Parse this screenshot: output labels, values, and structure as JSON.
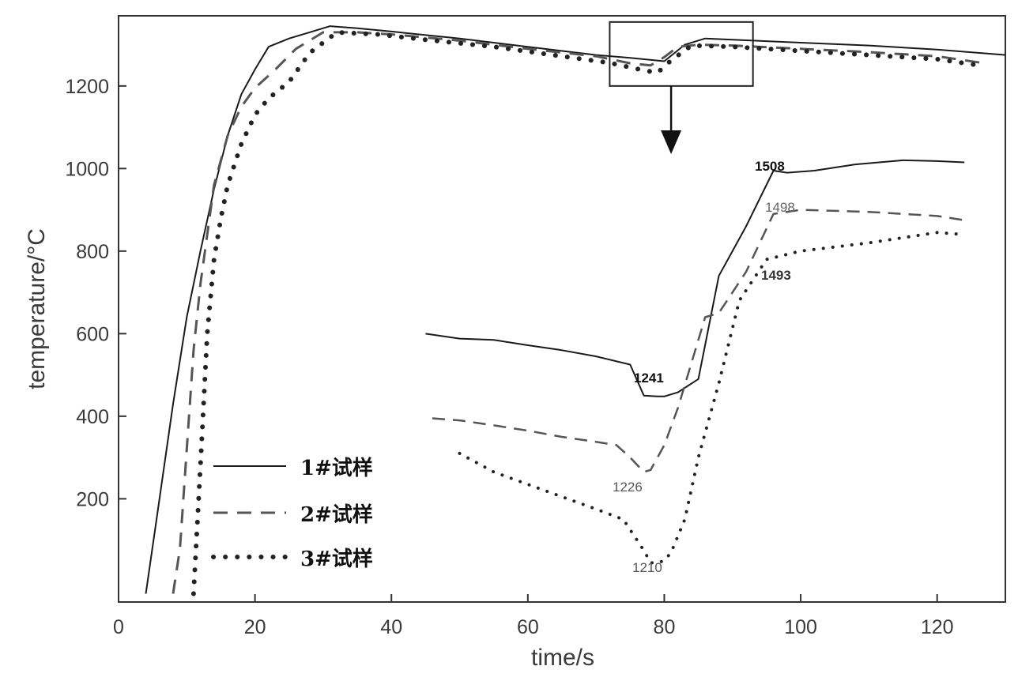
{
  "chart_data": {
    "type": "line",
    "xlabel": "time/s",
    "ylabel": "temperature/°C",
    "xlim": [
      0,
      130
    ],
    "ylim": [
      -50,
      1370
    ],
    "xticks": [
      0,
      20,
      40,
      60,
      80,
      100,
      120
    ],
    "yticks": [
      200,
      400,
      600,
      800,
      1000,
      1200
    ],
    "grid": false,
    "legend_position": "bottom-left",
    "series": [
      {
        "name": "1#试样",
        "style": "solid",
        "x": [
          4,
          6,
          8,
          10,
          12,
          14,
          16,
          18,
          20,
          22,
          25,
          28,
          31,
          35,
          40,
          50,
          60,
          70,
          75,
          80,
          83,
          86,
          90,
          100,
          110,
          120,
          130
        ],
        "y": [
          -30,
          200,
          430,
          640,
          800,
          950,
          1080,
          1180,
          1240,
          1295,
          1315,
          1330,
          1345,
          1340,
          1332,
          1315,
          1295,
          1275,
          1268,
          1260,
          1300,
          1315,
          1312,
          1305,
          1298,
          1288,
          1275
        ]
      },
      {
        "name": "2#试样",
        "style": "dashed",
        "x": [
          8,
          9,
          10,
          11,
          12,
          13,
          14,
          16,
          18,
          20,
          23,
          26,
          30,
          35,
          40,
          50,
          60,
          70,
          75,
          78,
          80,
          82,
          85,
          90,
          100,
          110,
          120,
          127
        ],
        "y": [
          -30,
          80,
          320,
          560,
          720,
          840,
          960,
          1080,
          1150,
          1195,
          1240,
          1290,
          1330,
          1330,
          1325,
          1310,
          1290,
          1272,
          1255,
          1250,
          1270,
          1295,
          1300,
          1298,
          1290,
          1282,
          1272,
          1255
        ]
      },
      {
        "name": "3#试样",
        "style": "dotted",
        "x": [
          11,
          12,
          13,
          14,
          15,
          16,
          18,
          20,
          22,
          25,
          28,
          32,
          38,
          45,
          55,
          65,
          72,
          77,
          79,
          81,
          84,
          90,
          100,
          110,
          120,
          127
        ],
        "y": [
          -30,
          280,
          600,
          780,
          880,
          960,
          1060,
          1130,
          1170,
          1210,
          1280,
          1330,
          1325,
          1312,
          1295,
          1272,
          1256,
          1238,
          1232,
          1262,
          1298,
          1295,
          1285,
          1275,
          1265,
          1248
        ]
      }
    ],
    "annotations": {
      "zoom_box": {
        "x": [
          72,
          93
        ],
        "y": [
          1200,
          1355
        ]
      },
      "arrow": {
        "x": 81,
        "y_from": 1200,
        "y_to": 1035
      },
      "inset": {
        "labels": [
          "1508",
          "1498",
          "1493",
          "1241",
          "1226",
          "1210"
        ],
        "series": [
          {
            "x": [
              45,
              50,
              55,
              60,
              65,
              70,
              75,
              77,
              79,
              80,
              82,
              85,
              88,
              92,
              96,
              98,
              102,
              108,
              115,
              120,
              124
            ],
            "y": [
              600,
              588,
              585,
              572,
              560,
              545,
              525,
              450,
              448,
              448,
              458,
              490,
              740,
              860,
              995,
              990,
              995,
              1010,
              1020,
              1018,
              1015
            ]
          },
          {
            "x": [
              46,
              50,
              55,
              60,
              65,
              70,
              73,
              75,
              77,
              78,
              80,
              82,
              84,
              86,
              88,
              92,
              96,
              100,
              110,
              120,
              124
            ],
            "y": [
              395,
              390,
              378,
              365,
              350,
              338,
              330,
              300,
              265,
              270,
              330,
              420,
              530,
              640,
              650,
              750,
              890,
              900,
              895,
              885,
              875
            ]
          },
          {
            "x": [
              50,
              55,
              60,
              65,
              70,
              74,
              77,
              78,
              79,
              80,
              81,
              83,
              85,
              88,
              91,
              95,
              100,
              110,
              120,
              124
            ],
            "y": [
              310,
              265,
              235,
              205,
              175,
              150,
              75,
              45,
              45,
              50,
              70,
              150,
              300,
              480,
              680,
              780,
              800,
              820,
              845,
              840
            ]
          }
        ]
      }
    }
  }
}
